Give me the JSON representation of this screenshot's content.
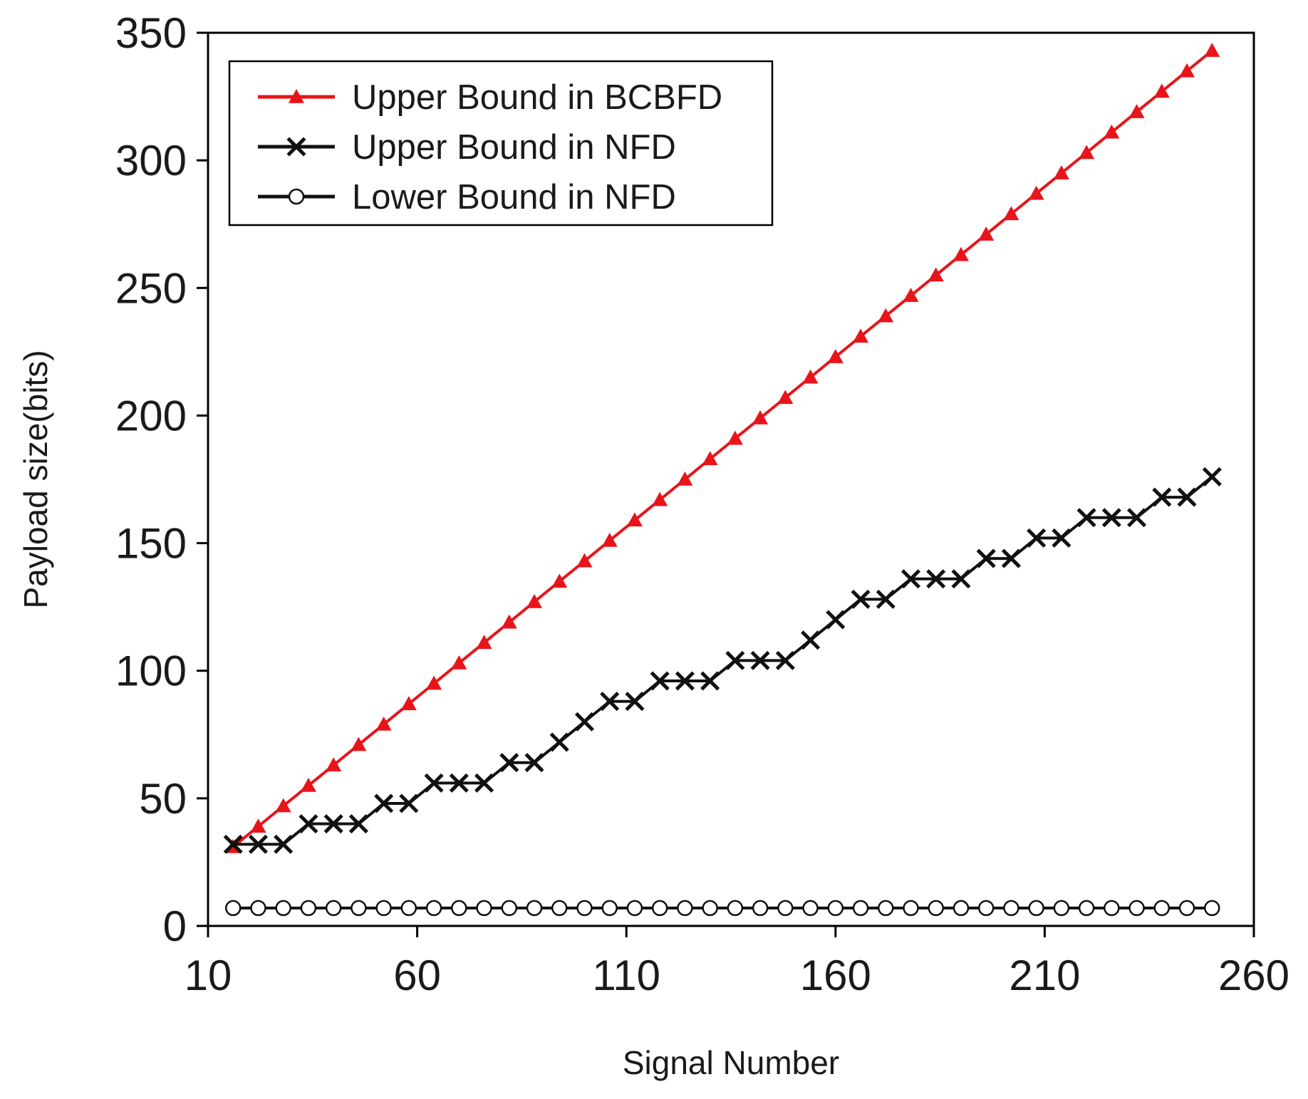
{
  "chart_data": {
    "type": "line",
    "title": "",
    "xlabel": "Signal Number",
    "ylabel": "Payload size(bits)",
    "xlim": [
      10,
      260
    ],
    "ylim": [
      0,
      350
    ],
    "xticks": [
      "10",
      "60",
      "110",
      "160",
      "210",
      "260"
    ],
    "yticks": [
      "0",
      "50",
      "100",
      "150",
      "200",
      "250",
      "300",
      "350"
    ],
    "grid": false,
    "legend_position": "top-left",
    "x": [
      16,
      22,
      28,
      34,
      40,
      46,
      52,
      58,
      64,
      70,
      76,
      82,
      88,
      94,
      100,
      106,
      112,
      118,
      124,
      130,
      136,
      142,
      148,
      154,
      160,
      166,
      172,
      178,
      184,
      190,
      196,
      202,
      208,
      214,
      220,
      226,
      232,
      238,
      244,
      250
    ],
    "series": [
      {
        "name": "Upper Bound in BCBFD",
        "color": "#e8141a",
        "marker": "triangle",
        "values": [
          31,
          39,
          47,
          55,
          63,
          71,
          79,
          87,
          95,
          103,
          111,
          119,
          127,
          135,
          143,
          151,
          159,
          167,
          175,
          183,
          191,
          199,
          207,
          215,
          223,
          231,
          239,
          247,
          255,
          263,
          271,
          279,
          287,
          295,
          303,
          311,
          319,
          327,
          335,
          343
        ]
      },
      {
        "name": "Upper Bound in NFD",
        "color": "#111111",
        "marker": "x",
        "values": [
          32,
          32,
          32,
          40,
          40,
          40,
          48,
          48,
          56,
          56,
          56,
          64,
          64,
          72,
          80,
          88,
          88,
          96,
          96,
          96,
          104,
          104,
          104,
          112,
          120,
          128,
          128,
          136,
          136,
          136,
          144,
          144,
          152,
          152,
          160,
          160,
          160,
          168,
          168,
          176
        ]
      },
      {
        "name": "Lower Bound in NFD",
        "color": "#111111",
        "marker": "circle-open",
        "values": [
          7,
          7,
          7,
          7,
          7,
          7,
          7,
          7,
          7,
          7,
          7,
          7,
          7,
          7,
          7,
          7,
          7,
          7,
          7,
          7,
          7,
          7,
          7,
          7,
          7,
          7,
          7,
          7,
          7,
          7,
          7,
          7,
          7,
          7,
          7,
          7,
          7,
          7,
          7,
          7
        ]
      }
    ]
  }
}
